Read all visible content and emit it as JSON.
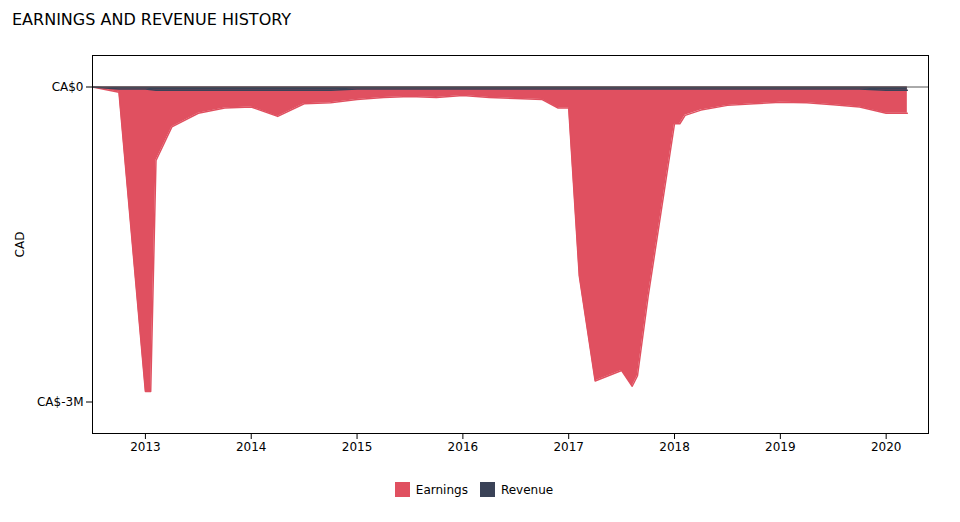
{
  "chart_data": {
    "type": "area",
    "title": "EARNINGS AND REVENUE HISTORY",
    "ylabel": "CAD",
    "xlim": [
      2012.5,
      2020.4
    ],
    "xticks": [
      2013,
      2014,
      2015,
      2016,
      2017,
      2018,
      2019,
      2020
    ],
    "ylim": [
      -3300000,
      300000
    ],
    "yticks": [
      {
        "value": 0,
        "label": "CA$0"
      },
      {
        "value": -3000000,
        "label": "CA$-3M"
      }
    ],
    "grid": false,
    "legend": "bottom",
    "series": [
      {
        "name": "Earnings",
        "color": "#e05060",
        "x": [
          2012.5,
          2012.75,
          2013.0,
          2013.05,
          2013.1,
          2013.25,
          2013.5,
          2013.75,
          2014.0,
          2014.25,
          2014.5,
          2014.75,
          2015.0,
          2015.25,
          2015.5,
          2015.75,
          2016.0,
          2016.25,
          2016.5,
          2016.75,
          2016.9,
          2017.0,
          2017.1,
          2017.25,
          2017.5,
          2017.6,
          2017.65,
          2017.75,
          2018.0,
          2018.05,
          2018.1,
          2018.25,
          2018.5,
          2018.75,
          2019.0,
          2019.25,
          2019.5,
          2019.75,
          2020.0,
          2020.2
        ],
        "values": [
          0,
          -50000,
          -2900000,
          -2900000,
          -700000,
          -380000,
          -250000,
          -200000,
          -190000,
          -280000,
          -160000,
          -150000,
          -120000,
          -100000,
          -90000,
          -100000,
          -80000,
          -100000,
          -110000,
          -120000,
          -200000,
          -200000,
          -1800000,
          -2800000,
          -2700000,
          -2850000,
          -2750000,
          -2000000,
          -350000,
          -350000,
          -270000,
          -220000,
          -175000,
          -160000,
          -145000,
          -150000,
          -170000,
          -190000,
          -250000,
          -250000
        ]
      },
      {
        "name": "Revenue",
        "color": "#3a4257",
        "x": [
          2012.5,
          2012.75,
          2013.0,
          2013.1,
          2013.25,
          2013.5,
          2013.75,
          2014.0,
          2014.25,
          2014.5,
          2014.75,
          2015.0,
          2015.25,
          2015.5,
          2015.75,
          2016.0,
          2016.1,
          2016.25,
          2016.5,
          2016.75,
          2016.9,
          2017.0,
          2017.25,
          2017.5,
          2017.75,
          2018.0,
          2018.1,
          2018.25,
          2018.5,
          2018.75,
          2019.0,
          2019.25,
          2019.5,
          2019.75,
          2020.0,
          2020.2
        ],
        "values": [
          0,
          -20000,
          -20000,
          -30000,
          -30000,
          -30000,
          -30000,
          -30000,
          -30000,
          -30000,
          -30000,
          -20000,
          -20000,
          -20000,
          -20000,
          -20000,
          -20000,
          -20000,
          -20000,
          -20000,
          -20000,
          -20000,
          -20000,
          -20000,
          -20000,
          -20000,
          -20000,
          -20000,
          -20000,
          -20000,
          -20000,
          -20000,
          -20000,
          -20000,
          -30000,
          -30000
        ]
      }
    ]
  }
}
